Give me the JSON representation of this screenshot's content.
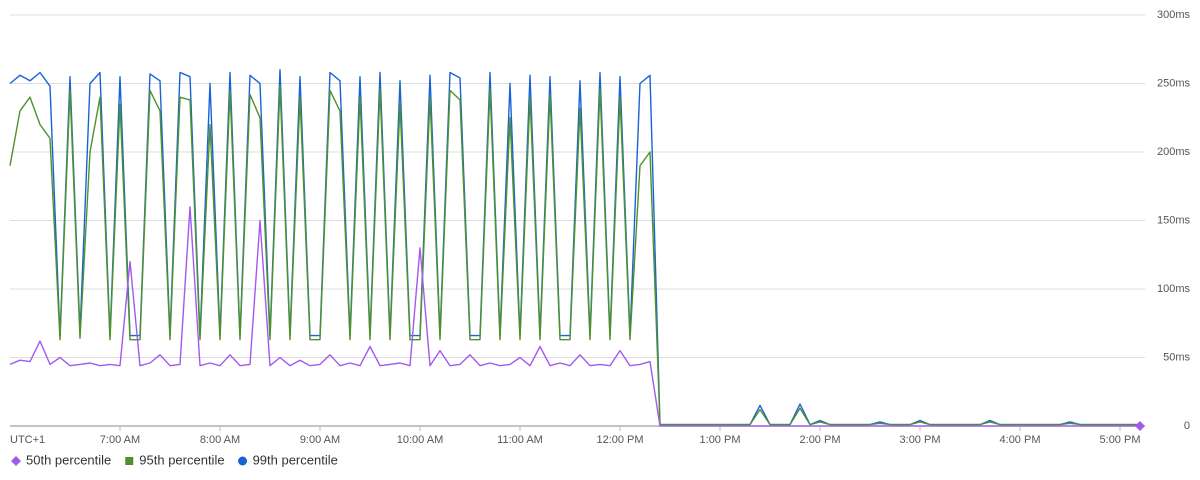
{
  "chart_data": {
    "type": "line",
    "timezone_label": "UTC+1",
    "x": [
      5.9,
      6,
      6.1,
      6.2,
      6.3,
      6.4,
      6.5,
      6.6,
      6.7,
      6.8,
      6.9,
      7,
      7.1,
      7.2,
      7.3,
      7.4,
      7.5,
      7.6,
      7.7,
      7.8,
      7.9,
      8,
      8.1,
      8.2,
      8.3,
      8.4,
      8.5,
      8.6,
      8.7,
      8.8,
      8.9,
      9,
      9.1,
      9.2,
      9.3,
      9.4,
      9.5,
      9.6,
      9.7,
      9.8,
      9.9,
      10,
      10.1,
      10.2,
      10.3,
      10.4,
      10.5,
      10.6,
      10.7,
      10.8,
      10.9,
      11,
      11.1,
      11.2,
      11.3,
      11.4,
      11.5,
      11.6,
      11.7,
      11.8,
      11.9,
      12,
      12.1,
      12.2,
      12.3,
      12.4,
      12.5,
      12.6,
      12.7,
      12.8,
      12.9,
      13,
      13.1,
      13.2,
      13.3,
      13.4,
      13.5,
      13.6,
      13.7,
      13.8,
      13.9,
      14,
      14.1,
      14.2,
      14.3,
      14.4,
      14.5,
      14.6,
      14.7,
      14.8,
      14.9,
      15,
      15.1,
      15.2,
      15.3,
      15.4,
      15.5,
      15.6,
      15.7,
      15.8,
      15.9,
      16,
      16.1,
      16.2,
      16.3,
      16.4,
      16.5,
      16.6,
      16.7,
      16.8,
      16.9,
      17,
      17.1,
      17.2
    ],
    "series": [
      {
        "name": "50th percentile",
        "color": "#a259f0",
        "marker": "diamond",
        "values": [
          45,
          48,
          47,
          62,
          45,
          50,
          44,
          45,
          46,
          44,
          45,
          44,
          120,
          44,
          46,
          52,
          44,
          45,
          160,
          44,
          46,
          44,
          52,
          44,
          45,
          150,
          44,
          50,
          44,
          48,
          44,
          45,
          52,
          44,
          46,
          44,
          58,
          44,
          45,
          46,
          44,
          130,
          44,
          55,
          44,
          45,
          52,
          44,
          46,
          44,
          45,
          50,
          44,
          58,
          44,
          46,
          44,
          52,
          44,
          45,
          44,
          55,
          44,
          45,
          47,
          0,
          0,
          0,
          0,
          0,
          0,
          0,
          0,
          0,
          0,
          0,
          0,
          0,
          0,
          0,
          0,
          0,
          0,
          0,
          0,
          0,
          0,
          0,
          0,
          0,
          0,
          0,
          0,
          0,
          0,
          0,
          0,
          0,
          0,
          0,
          0,
          0,
          0,
          0,
          0,
          0,
          0,
          0,
          0,
          0,
          0,
          0,
          0,
          0
        ]
      },
      {
        "name": "95th percentile",
        "color": "#4f922d",
        "marker": "square",
        "values": [
          190,
          230,
          240,
          220,
          210,
          63,
          245,
          64,
          200,
          240,
          63,
          235,
          63,
          63,
          245,
          230,
          63,
          240,
          238,
          63,
          220,
          63,
          245,
          63,
          242,
          225,
          63,
          248,
          63,
          240,
          63,
          63,
          245,
          230,
          63,
          240,
          63,
          246,
          63,
          235,
          63,
          63,
          240,
          63,
          245,
          238,
          63,
          63,
          246,
          63,
          225,
          63,
          240,
          63,
          242,
          63,
          63,
          232,
          63,
          246,
          63,
          240,
          63,
          190,
          200,
          1,
          1,
          1,
          1,
          1,
          1,
          1,
          1,
          1,
          1,
          12,
          1,
          1,
          1,
          13,
          1,
          3,
          1,
          1,
          1,
          1,
          1,
          2,
          1,
          1,
          1,
          3,
          1,
          1,
          1,
          1,
          1,
          1,
          3,
          1,
          1,
          1,
          1,
          1,
          1,
          1,
          2,
          1,
          1,
          1,
          1,
          1,
          1,
          1
        ]
      },
      {
        "name": "99th percentile",
        "color": "#1a63d6",
        "marker": "circle",
        "values": [
          250,
          256,
          252,
          258,
          248,
          65,
          255,
          68,
          250,
          258,
          65,
          255,
          66,
          66,
          257,
          252,
          66,
          258,
          255,
          65,
          250,
          66,
          258,
          65,
          256,
          250,
          66,
          260,
          66,
          255,
          66,
          66,
          258,
          252,
          66,
          255,
          66,
          258,
          66,
          252,
          66,
          66,
          256,
          66,
          258,
          254,
          66,
          66,
          258,
          66,
          250,
          66,
          256,
          66,
          255,
          66,
          66,
          252,
          66,
          258,
          66,
          255,
          66,
          250,
          256,
          1,
          1,
          1,
          1,
          1,
          1,
          1,
          1,
          1,
          1,
          15,
          1,
          1,
          1,
          16,
          1,
          4,
          1,
          1,
          1,
          1,
          1,
          3,
          1,
          1,
          1,
          4,
          1,
          1,
          1,
          1,
          1,
          1,
          4,
          1,
          1,
          1,
          1,
          1,
          1,
          1,
          3,
          1,
          1,
          1,
          1,
          1,
          1,
          1
        ]
      }
    ],
    "xlim": [
      5.9,
      17.25
    ],
    "xticks": [
      {
        "value": 7,
        "label": "7:00 AM"
      },
      {
        "value": 8,
        "label": "8:00 AM"
      },
      {
        "value": 9,
        "label": "9:00 AM"
      },
      {
        "value": 10,
        "label": "10:00 AM"
      },
      {
        "value": 11,
        "label": "11:00 AM"
      },
      {
        "value": 12,
        "label": "12:00 PM"
      },
      {
        "value": 13,
        "label": "1:00 PM"
      },
      {
        "value": 14,
        "label": "2:00 PM"
      },
      {
        "value": 15,
        "label": "3:00 PM"
      },
      {
        "value": 16,
        "label": "4:00 PM"
      },
      {
        "value": 17,
        "label": "5:00 PM"
      }
    ],
    "ylim": [
      0,
      300
    ],
    "yticks": [
      0,
      {
        "value": 50,
        "label": "50ms"
      },
      {
        "value": 100,
        "label": "100ms"
      },
      {
        "value": 150,
        "label": "150ms"
      },
      {
        "value": 200,
        "label": "200ms"
      },
      {
        "value": 250,
        "label": "250ms"
      },
      {
        "value": 300,
        "label": "300ms"
      }
    ],
    "grid": true,
    "legend": "bottom-left"
  }
}
